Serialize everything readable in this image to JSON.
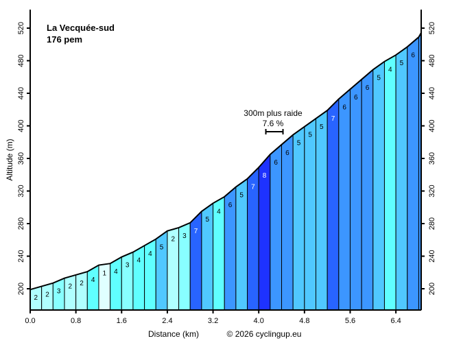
{
  "chart_data": {
    "type": "area",
    "title": "La Vecquée-sud",
    "subtitle": "176 pem",
    "xlabel": "Distance (km)",
    "ylabel": "Altitude (m)",
    "copyright": "© 2026 cyclingup.eu",
    "xlim": [
      0,
      6.84
    ],
    "ylim": [
      180,
      545
    ],
    "xticks": [
      "0.0",
      "0.8",
      "1.6",
      "2.4",
      "3.2",
      "4.0",
      "4.8",
      "5.6",
      "6.4"
    ],
    "yticks": [
      "200",
      "240",
      "280",
      "320",
      "360",
      "400",
      "440",
      "480",
      "520"
    ],
    "distances": [
      0,
      0.2,
      0.4,
      0.6,
      0.8,
      1.0,
      1.2,
      1.4,
      1.6,
      1.8,
      2.0,
      2.2,
      2.4,
      2.6,
      2.8,
      3.0,
      3.2,
      3.4,
      3.6,
      3.8,
      4.0,
      4.2,
      4.4,
      4.6,
      4.8,
      5.0,
      5.2,
      5.4,
      5.6,
      5.8,
      6.0,
      6.2,
      6.4,
      6.6,
      6.8,
      6.84
    ],
    "elevations": [
      199,
      203,
      207,
      213,
      217,
      221,
      229,
      231,
      239,
      245,
      253,
      261,
      271,
      275,
      281,
      295,
      305,
      313,
      325,
      335,
      349,
      365,
      377,
      389,
      399,
      409,
      419,
      433,
      445,
      457,
      469,
      479,
      487,
      497,
      509,
      514
    ],
    "segment_grades": [
      2,
      2,
      3,
      2,
      2,
      4,
      1,
      4,
      3,
      4,
      4,
      5,
      2,
      3,
      7,
      5,
      4,
      6,
      5,
      7,
      8,
      6,
      6,
      5,
      5,
      5,
      7,
      6,
      6,
      6,
      5,
      4,
      5,
      6,
      6
    ],
    "grade_colors": {
      "1": "#e0ffff",
      "2": "#b0ffff",
      "3": "#88ffff",
      "4": "#60ffff",
      "5": "#50c8ff",
      "6": "#3c96ff",
      "7": "#2864ff",
      "8": "#1e32ff"
    },
    "annotation": {
      "label": "300m plus raide",
      "value": "7.6 %",
      "start_km": 4.1,
      "length_km": 0.3
    }
  }
}
